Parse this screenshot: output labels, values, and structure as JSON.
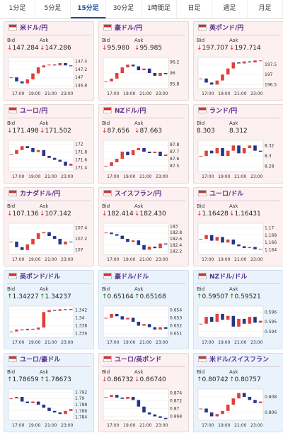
{
  "tabs": {
    "items": [
      "1分足",
      "5分足",
      "15分足",
      "30分足",
      "1時間足",
      "日足",
      "週足",
      "月足"
    ],
    "active": 2
  },
  "cards": [
    {
      "pair": "米ドル/円",
      "bid_label": "Bid",
      "ask_label": "Ask",
      "bid": "147.284",
      "ask": "147.286",
      "direction": "down",
      "chart": {
        "ylim": [
          146.72,
          147.5
        ],
        "yticks": [
          147.4,
          147.2,
          147,
          146.8
        ],
        "xticks": [
          "17:00",
          "19:00",
          "21:00",
          "23:00"
        ],
        "values": [
          147.0,
          146.9,
          146.85,
          146.95,
          147.1,
          147.25,
          147.3,
          147.32,
          147.3,
          147.36,
          147.3,
          147.28
        ]
      }
    },
    {
      "pair": "豪ドル/円",
      "bid_label": "Bid",
      "ask_label": "Ask",
      "bid": "95.980",
      "ask": "95.985",
      "direction": "down",
      "chart": {
        "ylim": [
          95.72,
          96.28
        ],
        "yticks": [
          96.2,
          96,
          95.8
        ],
        "xticks": [
          "17:00",
          "19:00",
          "21:00",
          "23:00"
        ],
        "values": [
          95.85,
          95.9,
          96.0,
          96.1,
          96.15,
          96.12,
          96.05,
          96.08,
          96.0,
          95.95,
          96.0,
          95.98
        ]
      }
    },
    {
      "pair": "英ポンド/円",
      "bid_label": "Bid",
      "ask_label": "Ask",
      "bid": "197.707",
      "ask": "197.714",
      "direction": "down",
      "chart": {
        "ylim": [
          196.3,
          197.85
        ],
        "yticks": [
          197.5,
          197,
          196.5
        ],
        "xticks": [
          "17:00",
          "19:00",
          "21:00",
          "23:00"
        ],
        "values": [
          196.8,
          196.6,
          196.5,
          196.7,
          197.0,
          197.3,
          197.6,
          197.55,
          197.65,
          197.6,
          197.7,
          197.7
        ]
      }
    },
    {
      "pair": "ユーロ/円",
      "bid_label": "Bid",
      "ask_label": "Ask",
      "bid": "171.498",
      "ask": "171.502",
      "direction": "down",
      "chart": {
        "ylim": [
          171.3,
          172.1
        ],
        "yticks": [
          172,
          171.8,
          171.6,
          171.4
        ],
        "xticks": [
          "17:00",
          "19:00",
          "21:00",
          "23:00"
        ],
        "values": [
          171.75,
          171.85,
          171.95,
          171.9,
          171.8,
          171.85,
          171.7,
          171.65,
          171.6,
          171.55,
          171.45,
          171.5
        ]
      }
    },
    {
      "pair": "NZドル/円",
      "bid_label": "Bid",
      "ask_label": "Ask",
      "bid": "87.656",
      "ask": "87.663",
      "direction": "down",
      "chart": {
        "ylim": [
          87.42,
          87.86
        ],
        "yticks": [
          87.8,
          87.7,
          87.6,
          87.5
        ],
        "xticks": [
          "17:00",
          "19:00",
          "21:00",
          "23:00"
        ],
        "values": [
          87.5,
          87.55,
          87.6,
          87.7,
          87.65,
          87.72,
          87.75,
          87.7,
          87.68,
          87.7,
          87.64,
          87.66
        ]
      }
    },
    {
      "pair": "ランド/円",
      "bid_label": "Bid",
      "ask_label": "Ask",
      "bid": "8.303",
      "ask": "8.312",
      "direction": "flat",
      "chart": {
        "ylim": [
          8.27,
          8.33
        ],
        "yticks": [
          8.32,
          8.3,
          8.28
        ],
        "xticks": [
          "17:00",
          "19:00",
          "21:00",
          "23:00"
        ],
        "values": [
          8.3,
          8.31,
          8.305,
          8.315,
          8.3,
          8.31,
          8.32,
          8.305,
          8.315,
          8.32,
          8.31,
          8.308
        ]
      }
    },
    {
      "pair": "カナダドル/円",
      "bid_label": "Bid",
      "ask_label": "Ask",
      "bid": "107.136",
      "ask": "107.142",
      "direction": "down",
      "chart": {
        "ylim": [
          106.92,
          107.48
        ],
        "yticks": [
          107.4,
          107.2,
          107
        ],
        "xticks": [
          "17:00",
          "19:00",
          "21:00",
          "23:00"
        ],
        "values": [
          107.15,
          107.05,
          107.0,
          107.1,
          107.2,
          107.3,
          107.32,
          107.25,
          107.2,
          107.1,
          107.15,
          107.14
        ]
      }
    },
    {
      "pair": "スイスフラン/円",
      "bid_label": "Bid",
      "ask_label": "Ask",
      "bid": "182.414",
      "ask": "182.430",
      "direction": "down",
      "chart": {
        "ylim": [
          182.1,
          183.1
        ],
        "yticks": [
          183,
          182.8,
          182.6,
          182.4,
          182.2
        ],
        "xticks": [
          "17:00",
          "19:00",
          "21:00",
          "23:00"
        ],
        "values": [
          182.8,
          182.75,
          182.7,
          182.6,
          182.5,
          182.55,
          182.4,
          182.25,
          182.35,
          182.3,
          182.45,
          182.42
        ]
      }
    },
    {
      "pair": "ユーロ/ドル",
      "bid_label": "Bid",
      "ask_label": "Ask",
      "bid": "1.16428",
      "ask": "1.16431",
      "direction": "down",
      "chart": {
        "ylim": [
          1.1628,
          1.1712
        ],
        "yticks": [
          1.17,
          1.168,
          1.166,
          1.164
        ],
        "xticks": [
          "17:00",
          "19:00",
          "21:00",
          "23:00"
        ],
        "values": [
          1.167,
          1.168,
          1.1665,
          1.1675,
          1.166,
          1.1668,
          1.1655,
          1.165,
          1.1645,
          1.1648,
          1.1642,
          1.1643
        ]
      }
    },
    {
      "pair": "英ポンド/ドル",
      "bid_label": "Bid",
      "ask_label": "Ask",
      "bid": "1.34227",
      "ask": "1.34237",
      "direction": "up",
      "chart": {
        "ylim": [
          1.335,
          1.343
        ],
        "yticks": [
          1.342,
          1.34,
          1.338,
          1.336
        ],
        "xticks": [
          "17:00",
          "19:00",
          "21:00",
          "23:00"
        ],
        "values": [
          1.3365,
          1.337,
          1.3368,
          1.3372,
          1.337,
          1.3375,
          1.3415,
          1.342,
          1.3418,
          1.3422,
          1.342,
          1.3423
        ]
      }
    },
    {
      "pair": "豪ドル/ドル",
      "bid_label": "Bid",
      "ask_label": "Ask",
      "bid": "0.65164",
      "ask": "0.65168",
      "direction": "up",
      "chart": {
        "ylim": [
          0.6505,
          0.6545
        ],
        "yticks": [
          0.654,
          0.653,
          0.652,
          0.651
        ],
        "xticks": [
          "17:00",
          "19:00",
          "21:00",
          "23:00"
        ],
        "values": [
          0.653,
          0.6535,
          0.6532,
          0.6528,
          0.653,
          0.6525,
          0.652,
          0.6522,
          0.6518,
          0.6515,
          0.6518,
          0.6516
        ]
      }
    },
    {
      "pair": "NZドル/ドル",
      "bid_label": "Bid",
      "ask_label": "Ask",
      "bid": "0.59507",
      "ask": "0.59521",
      "direction": "up",
      "chart": {
        "ylim": [
          0.5934,
          0.5966
        ],
        "yticks": [
          0.596,
          0.595,
          0.594
        ],
        "xticks": [
          "17:00",
          "19:00",
          "21:00",
          "23:00"
        ],
        "values": [
          0.5948,
          0.5955,
          0.595,
          0.5958,
          0.5952,
          0.5956,
          0.5945,
          0.5953,
          0.5948,
          0.5955,
          0.5949,
          0.5951
        ]
      }
    },
    {
      "pair": "ユーロ/豪ドル",
      "bid_label": "Bid",
      "ask_label": "Ask",
      "bid": "1.78659",
      "ask": "1.78673",
      "direction": "up",
      "chart": {
        "ylim": [
          1.783,
          1.793
        ],
        "yticks": [
          1.792,
          1.79,
          1.788,
          1.786,
          1.784
        ],
        "xticks": [
          "17:00",
          "19:00",
          "21:00",
          "23:00"
        ],
        "values": [
          1.79,
          1.7905,
          1.789,
          1.7885,
          1.789,
          1.788,
          1.787,
          1.786,
          1.7855,
          1.785,
          1.786,
          1.7866
        ]
      }
    },
    {
      "pair": "ユーロ/英ポンド",
      "bid_label": "Bid",
      "ask_label": "Ask",
      "bid": "0.86732",
      "ask": "0.86740",
      "direction": "down",
      "chart": {
        "ylim": [
          0.867,
          0.875
        ],
        "yticks": [
          0.874,
          0.872,
          0.87,
          0.868
        ],
        "xticks": [
          "17:00",
          "19:00",
          "21:00",
          "23:00"
        ],
        "values": [
          0.873,
          0.8735,
          0.8728,
          0.8725,
          0.873,
          0.8722,
          0.8705,
          0.869,
          0.8685,
          0.868,
          0.8676,
          0.8673
        ]
      }
    },
    {
      "pair": "米ドル/スイスフラン",
      "bid_label": "Bid",
      "ask_label": "Ask",
      "bid": "0.80742",
      "ask": "0.80757",
      "direction": "up",
      "chart": {
        "ylim": [
          0.805,
          0.809
        ],
        "yticks": [
          0.808,
          0.806
        ],
        "xticks": [
          "17:00",
          "19:00",
          "21:00",
          "23:00"
        ],
        "values": [
          0.8065,
          0.806,
          0.8055,
          0.8058,
          0.8062,
          0.807,
          0.8078,
          0.8085,
          0.808,
          0.8076,
          0.8072,
          0.8074
        ]
      }
    }
  ]
}
